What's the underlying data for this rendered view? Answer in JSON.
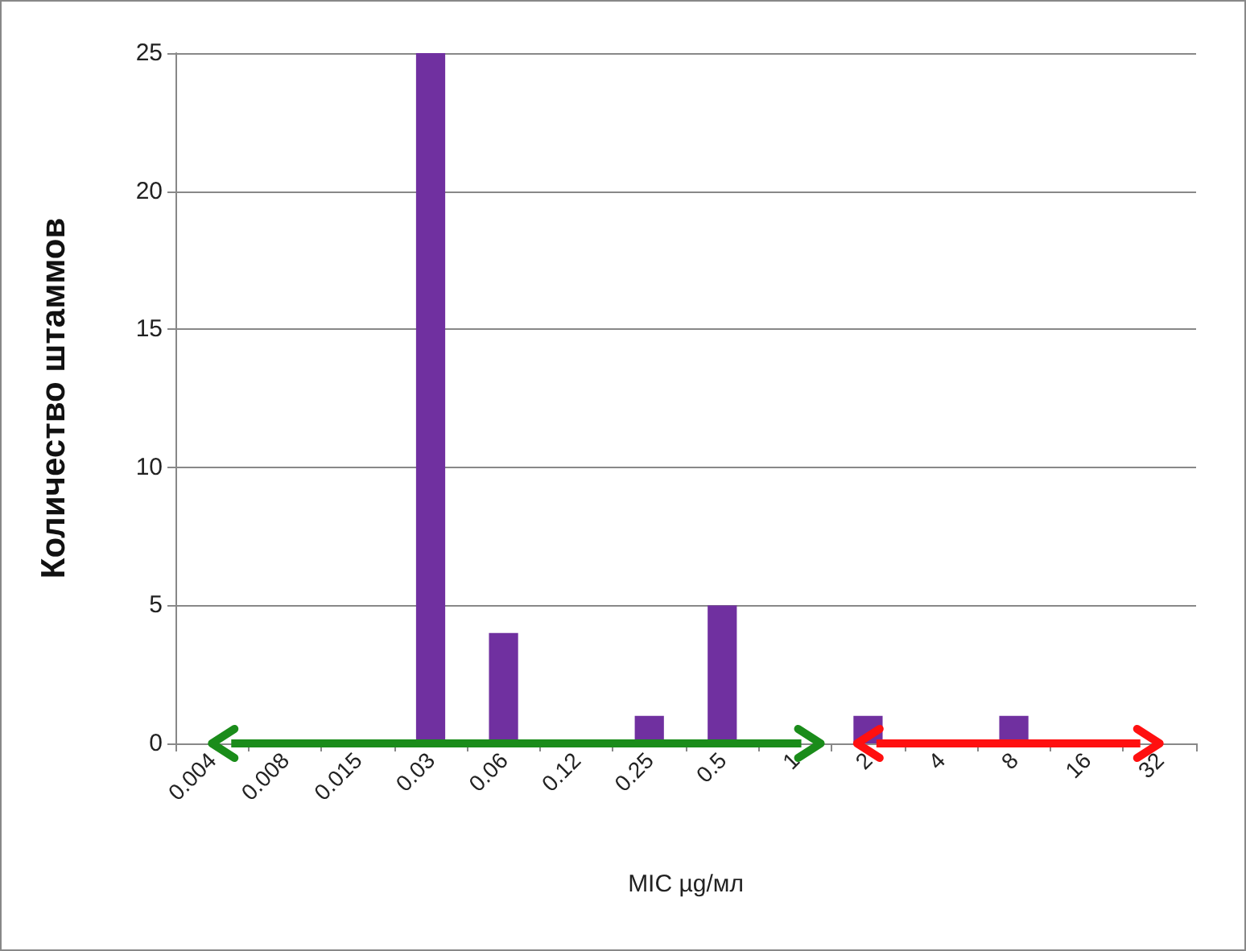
{
  "chart_data": {
    "type": "bar",
    "xlabel": "MIC µg/мл",
    "ylabel": "Количество штаммов",
    "categories": [
      "0.004",
      "0.008",
      "0.015",
      "0.03",
      "0.06",
      "0.12",
      "0.25",
      "0.5",
      "1",
      "2",
      "4",
      "8",
      "16",
      "32"
    ],
    "values": [
      0,
      0,
      0,
      25,
      4,
      0,
      1,
      5,
      0,
      1,
      0,
      1,
      0,
      0
    ],
    "color": "#7030a0",
    "ylim": [
      0,
      25
    ],
    "yticks": [
      0,
      5,
      10,
      15,
      20,
      25
    ],
    "grid": "y"
  }
}
